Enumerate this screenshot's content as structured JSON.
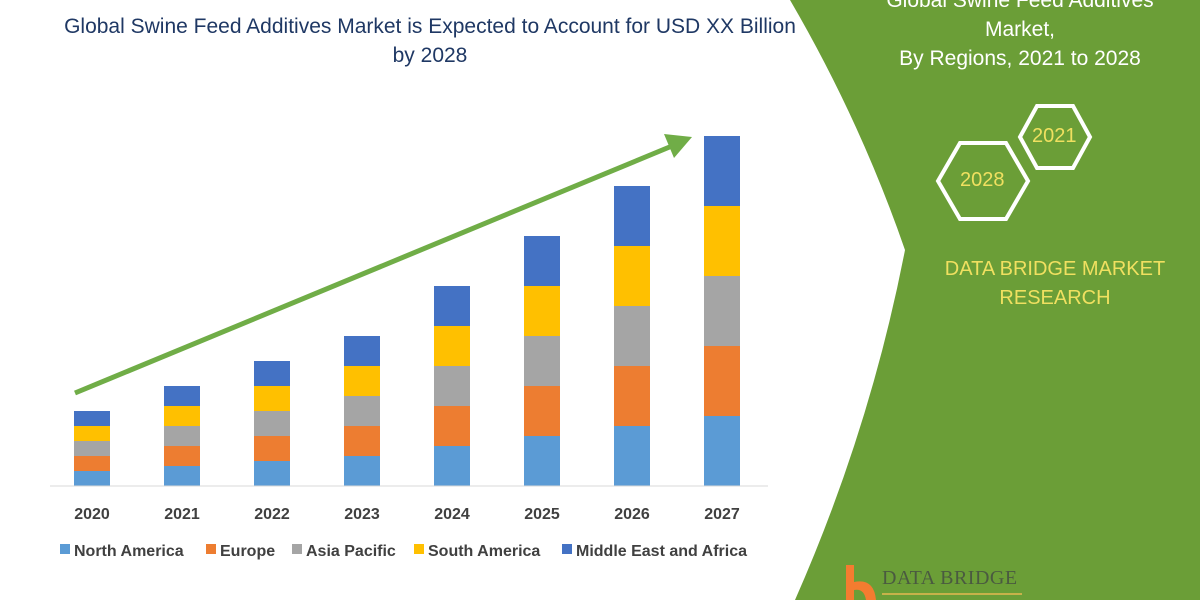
{
  "chart_data": {
    "type": "bar",
    "stacked": true,
    "title": "Global Swine Feed Additives Market is Expected to Account for USD XX Billion by 2028",
    "categories": [
      "2020",
      "2021",
      "2022",
      "2023",
      "2024",
      "2025",
      "2026",
      "2027"
    ],
    "series": [
      {
        "name": "North America",
        "color": "#5b9bd5",
        "values": [
          3,
          4,
          5,
          6,
          8,
          10,
          12,
          14
        ]
      },
      {
        "name": "Europe",
        "color": "#ed7d31",
        "values": [
          3,
          4,
          5,
          6,
          8,
          10,
          12,
          14
        ]
      },
      {
        "name": "Asia Pacific",
        "color": "#a5a5a5",
        "values": [
          3,
          4,
          5,
          6,
          8,
          10,
          12,
          14
        ]
      },
      {
        "name": "South America",
        "color": "#ffc000",
        "values": [
          3,
          4,
          5,
          6,
          8,
          10,
          12,
          14
        ]
      },
      {
        "name": "Middle East and Africa",
        "color": "#4472c4",
        "values": [
          3,
          4,
          5,
          6,
          8,
          10,
          12,
          14
        ]
      }
    ],
    "legend_placement": "bottom",
    "grid": false,
    "trend_arrow_color": "#70ad47"
  },
  "panel": {
    "title_line1": "Global Swine Feed Additives",
    "title_line2": "Market,",
    "title_line3": "By Regions, 2021 to 2028",
    "hex_a": "2021",
    "hex_b": "2028",
    "brand_line1": "DATA BRIDGE MARKET",
    "brand_line2": "RESEARCH",
    "logo_text": "DATA BRIDGE",
    "color": "#6b9e37"
  }
}
